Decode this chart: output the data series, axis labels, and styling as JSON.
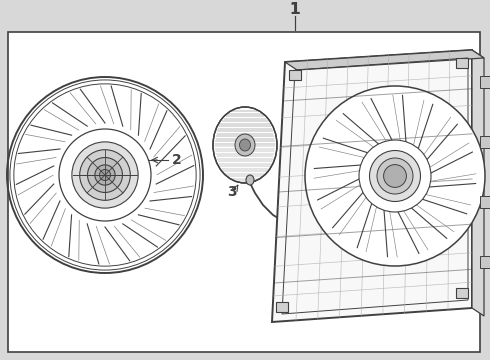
{
  "bg_color": "#d8d8d8",
  "box_bg": "#f0f0f0",
  "line_color": "#404040",
  "line_color_light": "#808080",
  "title_label": "1",
  "label2": "2",
  "label3": "3",
  "fig_width": 4.9,
  "fig_height": 3.6,
  "dpi": 100
}
